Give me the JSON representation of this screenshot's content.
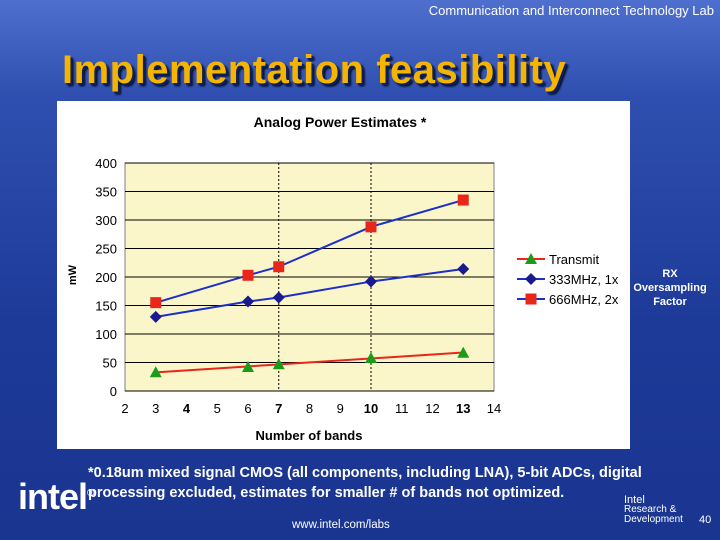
{
  "header": {
    "lab": "Communication and Interconnect Technology Lab"
  },
  "slide": {
    "title": "Implementation feasibility"
  },
  "chart_data": {
    "type": "line",
    "title": "Analog Power Estimates *",
    "xlabel": "Number of bands",
    "ylabel": "mW",
    "xlim": [
      2,
      14
    ],
    "ylim": [
      0,
      400
    ],
    "xticks": [
      2,
      3,
      4,
      5,
      6,
      7,
      8,
      9,
      10,
      11,
      12,
      13,
      14
    ],
    "yticks": [
      0,
      50,
      100,
      150,
      200,
      250,
      300,
      350,
      400
    ],
    "x_highlighted_ticks": [
      4,
      7,
      10,
      13
    ],
    "vertical_dotted_lines_at": [
      7,
      10
    ],
    "grid": "horizontal",
    "plot_background": "#fbf6c9",
    "legend": "right",
    "series": [
      {
        "name": "Transmit",
        "color": "#e8261a",
        "marker_color": "#1a9c1a",
        "marker": "triangle",
        "x": [
          3,
          6,
          7,
          10,
          13
        ],
        "values": [
          33,
          42,
          47,
          58,
          67
        ],
        "fit_line": true
      },
      {
        "name": "333MHz, 1x",
        "color": "#1d2fc9",
        "marker_color": "#1a1a8f",
        "marker": "diamond",
        "x": [
          3,
          6,
          7,
          10,
          13
        ],
        "values": [
          130,
          157,
          164,
          192,
          214
        ]
      },
      {
        "name": "666MHz, 2x",
        "color": "#1d2fc9",
        "marker_color": "#e8261a",
        "marker": "square",
        "x": [
          3,
          6,
          7,
          10,
          13
        ],
        "values": [
          155,
          203,
          218,
          288,
          335
        ]
      }
    ]
  },
  "side_label": {
    "line1": "RX",
    "line2": "Oversampling",
    "line3": "Factor"
  },
  "footnote": "*0.18um mixed signal CMOS (all components, including LNA), 5-bit ADCs, digital processing excluded, estimates for smaller # of bands not optimized.",
  "footer": {
    "logo": "int",
    "logo_el": "el",
    "logo_reg": "®",
    "url": "www.intel.com/labs",
    "rd_line1": "Intel",
    "rd_line2": "Research &",
    "rd_line3": "Development",
    "page": "40"
  }
}
